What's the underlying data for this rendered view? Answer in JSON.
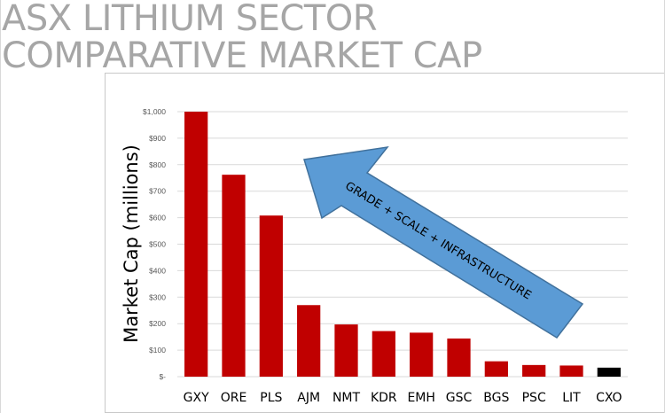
{
  "page": {
    "title_lines": [
      "ASX LITHIUM SECTOR",
      "COMPARATIVE MARKET CAP"
    ]
  },
  "colors": {
    "bar": "#c00000",
    "highlight_bar": "#000000",
    "arrow_fill": "#5b9bd5",
    "arrow_stroke": "#41719c",
    "title": "#a6a6a6",
    "grid": "#d9d9d9"
  },
  "annotation": {
    "text": "GRADE  + SCALE + INFRASTRUCTURE"
  },
  "chart_data": {
    "type": "bar",
    "title": "",
    "xlabel": "",
    "ylabel": "Market Cap (millions)",
    "categories": [
      "GXY",
      "ORE",
      "PLS",
      "AJM",
      "NMT",
      "KDR",
      "EMH",
      "GSC",
      "BGS",
      "PSC",
      "LIT",
      "CXO"
    ],
    "values": [
      1000,
      762,
      608,
      270,
      197,
      172,
      166,
      144,
      58,
      44,
      42,
      34
    ],
    "highlight_category": "CXO",
    "ylim": [
      0,
      1000
    ],
    "yticks": [
      0,
      100,
      200,
      300,
      400,
      500,
      600,
      700,
      800,
      900,
      1000
    ],
    "ytick_labels": [
      "$-",
      "$100",
      "$200",
      "$300",
      "$400",
      "$500",
      "$600",
      "$700",
      "$800",
      "$900",
      "$1,000"
    ],
    "grid": true,
    "legend": "none"
  }
}
